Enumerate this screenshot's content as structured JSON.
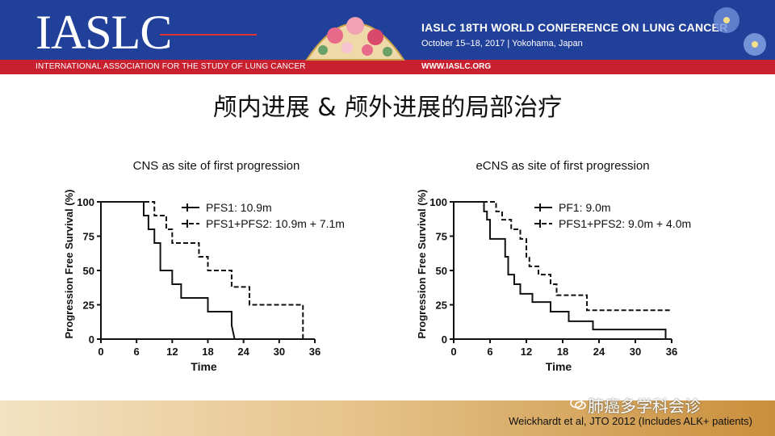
{
  "header": {
    "logo_text": "IASLC",
    "association": "INTERNATIONAL ASSOCIATION FOR THE STUDY OF LUNG CANCER",
    "conference_title": "IASLC 18TH WORLD CONFERENCE ON LUNG CANCER",
    "conference_dates": "October 15–18, 2017 | Yokohama, Japan",
    "url": "WWW.IASLC.ORG",
    "colors": {
      "banner_blue": "#21409a",
      "banner_red": "#c8202f"
    }
  },
  "slide_title": "颅内进展 & 颅外进展的局部治疗",
  "watermark": "肺癌多学科会诊",
  "reference": "Weickhardt et al, JTO 2012 (Includes ALK+ patients)",
  "chart_data": [
    {
      "type": "line",
      "title": "CNS as site of first progression",
      "xlabel": "Time",
      "ylabel": "Progression Free Survival (%)",
      "xlim": [
        0,
        36
      ],
      "ylim": [
        0,
        100
      ],
      "xticks": [
        0,
        6,
        12,
        18,
        24,
        30,
        36
      ],
      "yticks": [
        0,
        25,
        50,
        75,
        100
      ],
      "legend_position": "top-right",
      "series": [
        {
          "name": "PFS1: 10.9m",
          "style": "solid",
          "x": [
            0,
            7.2,
            7.2,
            8,
            8,
            9,
            9,
            10,
            10,
            12,
            12,
            13.5,
            13.5,
            18,
            18,
            22,
            22,
            22.5
          ],
          "y": [
            100,
            100,
            90,
            90,
            80,
            80,
            70,
            70,
            50,
            50,
            40,
            40,
            30,
            30,
            20,
            20,
            10,
            0
          ]
        },
        {
          "name": "PFS1+PFS2: 10.9m + 7.1m",
          "style": "dashed",
          "x": [
            0,
            9,
            9,
            11,
            11,
            12,
            12,
            16.5,
            16.5,
            18,
            18,
            22,
            22,
            25,
            25,
            34,
            34
          ],
          "y": [
            100,
            100,
            90,
            90,
            80,
            80,
            70,
            70,
            60,
            60,
            50,
            50,
            38,
            38,
            25,
            25,
            0
          ]
        }
      ]
    },
    {
      "type": "line",
      "title": "eCNS as site of first progression",
      "xlabel": "Time",
      "ylabel": "Progression Free Survival (%)",
      "xlim": [
        0,
        36
      ],
      "ylim": [
        0,
        100
      ],
      "xticks": [
        0,
        6,
        12,
        18,
        24,
        30,
        36
      ],
      "yticks": [
        0,
        25,
        50,
        75,
        100
      ],
      "legend_position": "top-right",
      "series": [
        {
          "name": "PF1: 9.0m",
          "style": "solid",
          "x": [
            0,
            5,
            5,
            5.5,
            5.5,
            6,
            6,
            8.5,
            8.5,
            9,
            9,
            10,
            10,
            11,
            11,
            13,
            13,
            16,
            16,
            19,
            19,
            23,
            23,
            35,
            35
          ],
          "y": [
            100,
            100,
            93,
            93,
            87,
            87,
            73,
            73,
            60,
            60,
            47,
            47,
            40,
            40,
            33,
            33,
            27,
            27,
            20,
            20,
            13,
            13,
            7,
            7,
            0
          ]
        },
        {
          "name": "PFS1+PFS2: 9.0m + 4.0m",
          "style": "dashed",
          "x": [
            0,
            7,
            7,
            8,
            8,
            9.5,
            9.5,
            11,
            11,
            12,
            12,
            12.5,
            12.5,
            14,
            14,
            16,
            16,
            17,
            17,
            22,
            22,
            36
          ],
          "y": [
            100,
            100,
            93,
            93,
            87,
            87,
            80,
            80,
            73,
            73,
            60,
            60,
            53,
            53,
            47,
            47,
            40,
            40,
            32,
            32,
            21,
            21
          ]
        }
      ]
    }
  ]
}
